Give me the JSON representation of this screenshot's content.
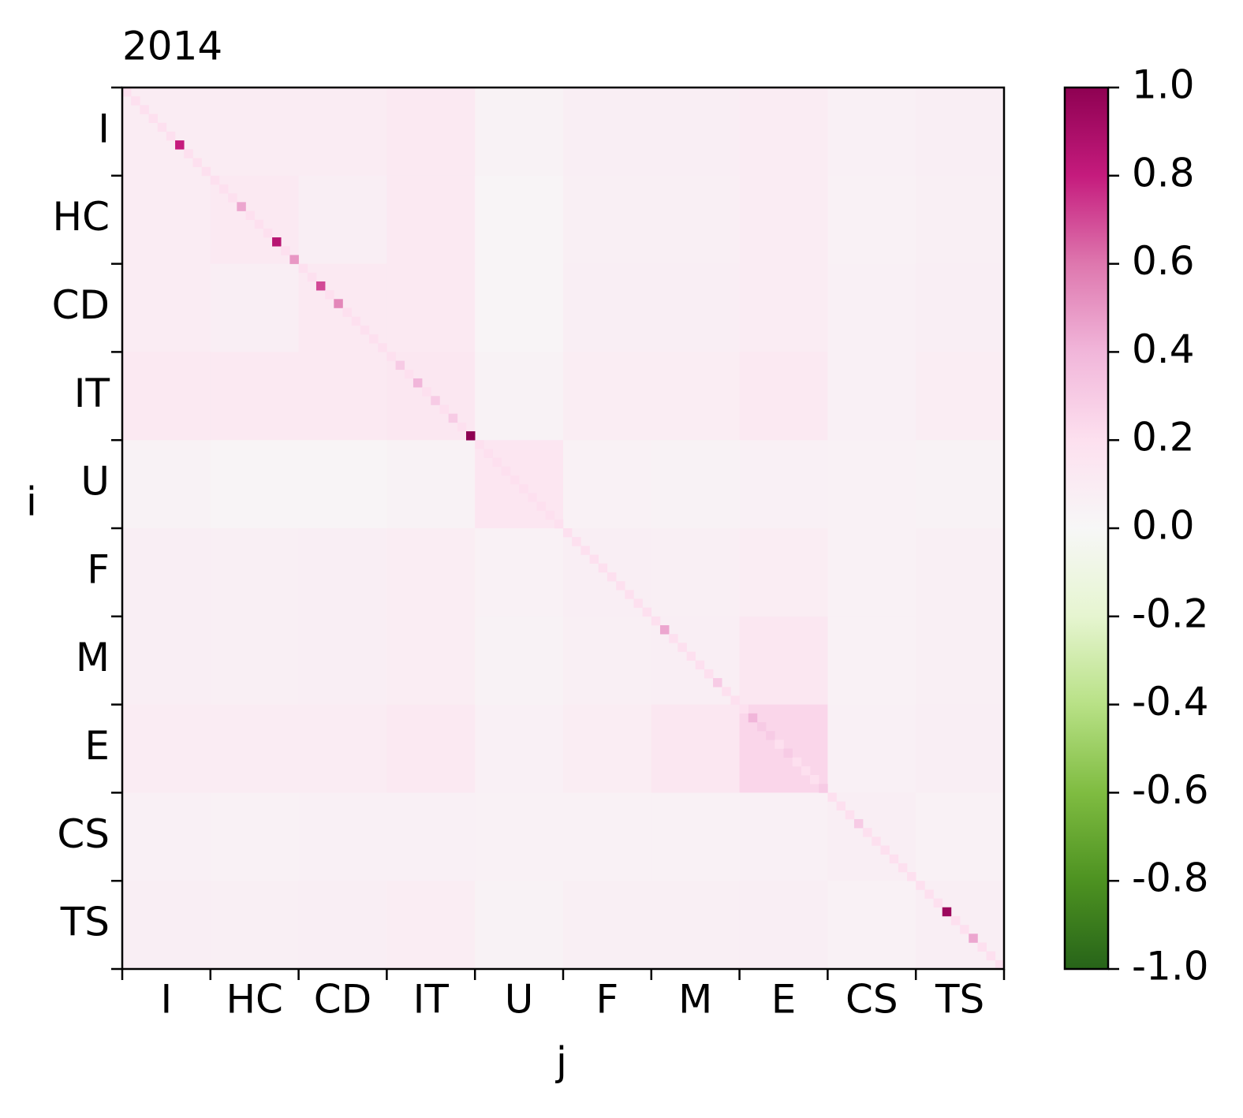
{
  "chart_data": {
    "type": "heatmap",
    "title": "2014",
    "x_label": "j",
    "y_label": "i",
    "categories": [
      "I",
      "HC",
      "CD",
      "IT",
      "U",
      "F",
      "M",
      "E",
      "CS",
      "TS"
    ],
    "xlim": [
      0,
      100
    ],
    "ylim": [
      100,
      0
    ],
    "xticks": [
      0,
      10,
      20,
      30,
      40,
      50,
      60,
      70,
      80,
      90,
      100
    ],
    "yticks": [
      0,
      10,
      20,
      30,
      40,
      50,
      60,
      70,
      80,
      90,
      100
    ],
    "block_values": [
      [
        0.1,
        0.1,
        0.1,
        0.12,
        0.04,
        0.08,
        0.08,
        0.1,
        0.06,
        0.08
      ],
      [
        0.1,
        0.12,
        0.08,
        0.12,
        0.03,
        0.07,
        0.07,
        0.1,
        0.05,
        0.07
      ],
      [
        0.1,
        0.08,
        0.12,
        0.12,
        0.03,
        0.08,
        0.08,
        0.1,
        0.06,
        0.08
      ],
      [
        0.12,
        0.12,
        0.12,
        0.14,
        0.04,
        0.09,
        0.09,
        0.12,
        0.06,
        0.09
      ],
      [
        0.04,
        0.03,
        0.03,
        0.04,
        0.15,
        0.05,
        0.04,
        0.06,
        0.05,
        0.04
      ],
      [
        0.08,
        0.07,
        0.08,
        0.09,
        0.05,
        0.08,
        0.07,
        0.09,
        0.05,
        0.07
      ],
      [
        0.08,
        0.07,
        0.08,
        0.09,
        0.04,
        0.07,
        0.08,
        0.14,
        0.05,
        0.07
      ],
      [
        0.1,
        0.1,
        0.1,
        0.12,
        0.06,
        0.09,
        0.14,
        0.25,
        0.06,
        0.08
      ],
      [
        0.06,
        0.05,
        0.06,
        0.06,
        0.05,
        0.05,
        0.05,
        0.06,
        0.08,
        0.05
      ],
      [
        0.08,
        0.07,
        0.08,
        0.09,
        0.04,
        0.07,
        0.07,
        0.08,
        0.05,
        0.08
      ]
    ],
    "diagonal": [
      0.2,
      0.2,
      0.2,
      0.2,
      0.2,
      0.2,
      0.8,
      0.2,
      0.2,
      0.2,
      0.2,
      0.2,
      0.2,
      0.45,
      0.2,
      0.2,
      0.2,
      0.85,
      0.2,
      0.5,
      0.2,
      0.2,
      0.7,
      0.2,
      0.55,
      0.2,
      0.2,
      0.2,
      0.2,
      0.2,
      0.2,
      0.3,
      0.2,
      0.4,
      0.2,
      0.3,
      0.2,
      0.3,
      0.2,
      1.0,
      0.2,
      0.2,
      0.2,
      0.2,
      0.2,
      0.2,
      0.2,
      0.2,
      0.2,
      0.2,
      0.2,
      0.2,
      0.2,
      0.2,
      0.2,
      0.2,
      0.2,
      0.2,
      0.2,
      0.2,
      0.2,
      0.45,
      0.2,
      0.2,
      0.2,
      0.2,
      0.2,
      0.3,
      0.2,
      0.2,
      0.2,
      0.4,
      0.3,
      0.3,
      0.2,
      0.3,
      0.2,
      0.2,
      0.2,
      0.3,
      0.2,
      0.2,
      0.2,
      0.3,
      0.2,
      0.2,
      0.2,
      0.2,
      0.2,
      0.2,
      0.2,
      0.2,
      0.2,
      0.95,
      0.2,
      0.2,
      0.45,
      0.2,
      0.2,
      0.2
    ],
    "clim": [
      -1,
      1
    ],
    "colormap": [
      "#276419",
      "#4d9221",
      "#7fbc41",
      "#b8e186",
      "#e6f5d0",
      "#f7f7f7",
      "#fde0ef",
      "#f1b6da",
      "#de77ae",
      "#c51b7d",
      "#8e0152"
    ],
    "colorbar_ticks": [
      {
        "value": 1,
        "label": "1.0"
      },
      0.8,
      0.6,
      0.4,
      0.2,
      {
        "value": 0,
        "label": "0.0"
      },
      -0.2,
      -0.4,
      -0.6,
      -0.8,
      {
        "value": -1,
        "label": "-1.0"
      }
    ]
  }
}
